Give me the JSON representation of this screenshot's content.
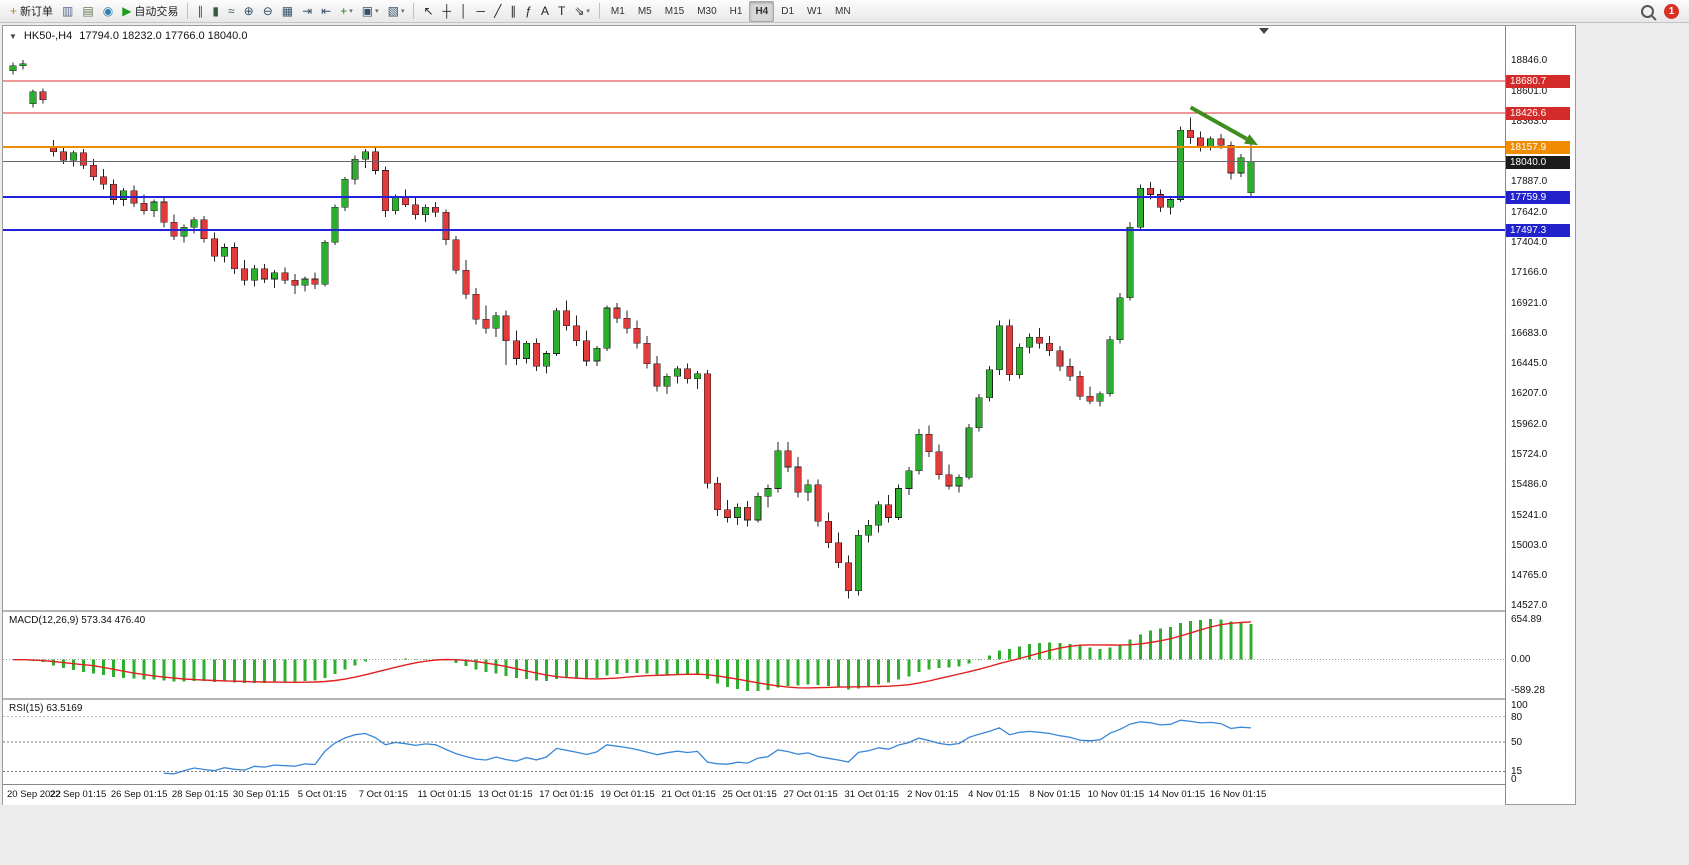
{
  "window": {
    "symbol": "HK50-,H4",
    "ohlc": "17794.0 18232.0 17766.0 18040.0"
  },
  "toolbar": {
    "notification_count": "1",
    "timeframes": [
      "M1",
      "M5",
      "M15",
      "M30",
      "H1",
      "H4",
      "D1",
      "W1",
      "MN"
    ],
    "active_timeframe": "H4",
    "groups": [
      {
        "items": [
          {
            "n": "new-order",
            "g": "+",
            "c": "#b8860b",
            "label": "新订单"
          },
          {
            "n": "charts",
            "g": "▥",
            "c": "#556688"
          },
          {
            "n": "profiles",
            "g": "▤",
            "c": "#667755"
          },
          {
            "n": "market-watch",
            "g": "◉",
            "c": "#2f7fae"
          },
          {
            "n": "autotrading",
            "g": "▶",
            "c": "#1f9e1f",
            "label": "自动交易"
          }
        ]
      },
      {
        "items": [
          {
            "n": "bar-chart",
            "g": "∥",
            "c": "#3a5a3a"
          },
          {
            "n": "candlestick-chart",
            "g": "▮",
            "c": "#3a5a3a"
          },
          {
            "n": "line-chart",
            "g": "≈",
            "c": "#3a5a3a"
          },
          {
            "n": "zoom-in",
            "g": "⊕",
            "c": "#33506a"
          },
          {
            "n": "zoom-out",
            "g": "⊖",
            "c": "#33506a"
          },
          {
            "n": "tile-windows",
            "g": "▦",
            "c": "#33506a"
          },
          {
            "n": "auto-scroll",
            "g": "⇥",
            "c": "#33506a"
          },
          {
            "n": "chart-shift",
            "g": "⇤",
            "c": "#33506a"
          },
          {
            "n": "indicators",
            "g": "+",
            "c": "#1a8a1a",
            "dd": true
          },
          {
            "n": "periods",
            "g": "▣",
            "c": "#33506a",
            "dd": true
          },
          {
            "n": "templates",
            "g": "▧",
            "c": "#33506a",
            "dd": true
          }
        ]
      },
      {
        "items": [
          {
            "n": "cursor",
            "g": "↖",
            "c": "#222222"
          },
          {
            "n": "crosshair",
            "g": "┼",
            "c": "#222222"
          },
          {
            "n": "vertical-line",
            "g": "│",
            "c": "#222222"
          },
          {
            "n": "horizontal-line",
            "g": "─",
            "c": "#222222"
          },
          {
            "n": "trendline",
            "g": "╱",
            "c": "#222222"
          },
          {
            "n": "equidistant-channel",
            "g": "∥",
            "c": "#222222"
          },
          {
            "n": "fibonacci",
            "g": "ƒ",
            "c": "#222222"
          },
          {
            "n": "text",
            "g": "A",
            "c": "#222222"
          },
          {
            "n": "text-label",
            "g": "T",
            "c": "#222222"
          },
          {
            "n": "arrows",
            "g": "⇘",
            "c": "#222222",
            "dd": true
          }
        ]
      }
    ]
  },
  "colors": {
    "bull": "#2eae2e",
    "bear": "#e23b3b",
    "wick": "#222222",
    "macd_hist": "#2eae2e",
    "macd_signal": "#e02020",
    "rsi_line": "#3a87d8",
    "arrow": "#3f8f1f"
  },
  "price_axis": {
    "ticks": [
      "18846.0",
      "18601.0",
      "18363.0",
      "18123.0",
      "17887.0",
      "17642.0",
      "17404.0",
      "17166.0",
      "16921.0",
      "16683.0",
      "16445.0",
      "16207.0",
      "15962.0",
      "15724.0",
      "15486.0",
      "15241.0",
      "15003.0",
      "14765.0",
      "14527.0"
    ]
  },
  "macd": {
    "label": "MACD(12,26,9) 573.34 476.40",
    "axis": [
      "654.89",
      "0.00",
      "-589.28"
    ]
  },
  "rsi": {
    "label": "RSI(15) 63.5169",
    "axis": [
      "100",
      "80",
      "50",
      "15",
      "0"
    ],
    "levels": [
      80,
      50,
      15
    ]
  },
  "annotations": {
    "arrow": {
      "from_bar": 117,
      "from_price": 18470,
      "to_bar": 123.7,
      "to_price": 18170
    }
  },
  "chart_data": [
    {
      "type": "candlestick",
      "title": "HK50-,H4",
      "timeframe": "H4",
      "ylim": [
        14487,
        19115
      ],
      "x_labels": [
        "20 Sep 2022",
        "22 Sep 01:15",
        "26 Sep 01:15",
        "28 Sep 01:15",
        "30 Sep 01:15",
        "5 Oct 01:15",
        "7 Oct 01:15",
        "11 Oct 01:15",
        "13 Oct 01:15",
        "17 Oct 01:15",
        "19 Oct 01:15",
        "21 Oct 01:15",
        "25 Oct 01:15",
        "27 Oct 01:15",
        "31 Oct 01:15",
        "2 Nov 01:15",
        "4 Nov 01:15",
        "8 Nov 01:15",
        "10 Nov 01:15",
        "14 Nov 01:15",
        "16 Nov 01:15"
      ],
      "levels": [
        {
          "label": "18680.7",
          "price": 18680.7,
          "color": "#e03030",
          "width": 1,
          "badge_bg": "#d42a2a"
        },
        {
          "label": "18426.6",
          "price": 18426.6,
          "color": "#e03030",
          "width": 1,
          "badge_bg": "#d42a2a"
        },
        {
          "label": "18157.9",
          "price": 18157.9,
          "color": "#f08c00",
          "width": 2,
          "badge_bg": "#f08c00"
        },
        {
          "label": "18040.0",
          "price": 18040.0,
          "color": "#666666",
          "width": 1,
          "badge_bg": "#1c1c1c"
        },
        {
          "label": "17759.9",
          "price": 17759.9,
          "color": "#2222dd",
          "width": 2,
          "badge_bg": "#2222cc"
        },
        {
          "label": "17497.3",
          "price": 17497.3,
          "color": "#2222dd",
          "width": 2,
          "badge_bg": "#2222cc"
        }
      ],
      "ohlc": [
        [
          18760,
          18825,
          18730,
          18800
        ],
        [
          18800,
          18846,
          18770,
          18815
        ],
        [
          18500,
          18610,
          18470,
          18595
        ],
        [
          18595,
          18620,
          18500,
          18530
        ],
        [
          18150,
          18210,
          18080,
          18120
        ],
        [
          18120,
          18160,
          18020,
          18050
        ],
        [
          18050,
          18130,
          18000,
          18110
        ],
        [
          18110,
          18140,
          17980,
          18010
        ],
        [
          18010,
          18060,
          17890,
          17920
        ],
        [
          17920,
          17980,
          17820,
          17860
        ],
        [
          17860,
          17900,
          17700,
          17740
        ],
        [
          17740,
          17830,
          17690,
          17810
        ],
        [
          17810,
          17850,
          17680,
          17710
        ],
        [
          17710,
          17780,
          17620,
          17650
        ],
        [
          17650,
          17740,
          17600,
          17720
        ],
        [
          17720,
          17750,
          17520,
          17560
        ],
        [
          17560,
          17620,
          17420,
          17450
        ],
        [
          17450,
          17540,
          17400,
          17520
        ],
        [
          17520,
          17600,
          17470,
          17580
        ],
        [
          17580,
          17610,
          17400,
          17430
        ],
        [
          17430,
          17480,
          17250,
          17290
        ],
        [
          17290,
          17390,
          17240,
          17360
        ],
        [
          17360,
          17400,
          17150,
          17190
        ],
        [
          17190,
          17260,
          17060,
          17100
        ],
        [
          17100,
          17220,
          17050,
          17190
        ],
        [
          17190,
          17230,
          17080,
          17110
        ],
        [
          17110,
          17180,
          17040,
          17160
        ],
        [
          17160,
          17200,
          17070,
          17100
        ],
        [
          17100,
          17150,
          16990,
          17060
        ],
        [
          17060,
          17130,
          17010,
          17110
        ],
        [
          17110,
          17160,
          17030,
          17070
        ],
        [
          17070,
          17420,
          17050,
          17400
        ],
        [
          17400,
          17700,
          17380,
          17680
        ],
        [
          17680,
          17920,
          17650,
          17900
        ],
        [
          17900,
          18090,
          17860,
          18060
        ],
        [
          18060,
          18140,
          17990,
          18120
        ],
        [
          18120,
          18150,
          17940,
          17970
        ],
        [
          17970,
          18000,
          17600,
          17650
        ],
        [
          17650,
          17780,
          17620,
          17760
        ],
        [
          17760,
          17820,
          17680,
          17700
        ],
        [
          17700,
          17760,
          17580,
          17620
        ],
        [
          17620,
          17700,
          17560,
          17680
        ],
        [
          17680,
          17720,
          17600,
          17640
        ],
        [
          17640,
          17660,
          17380,
          17420
        ],
        [
          17420,
          17450,
          17150,
          17180
        ],
        [
          17180,
          17260,
          16950,
          16990
        ],
        [
          16990,
          17040,
          16750,
          16790
        ],
        [
          16790,
          16900,
          16680,
          16720
        ],
        [
          16720,
          16850,
          16650,
          16820
        ],
        [
          16820,
          16860,
          16430,
          16620
        ],
        [
          16620,
          16700,
          16430,
          16480
        ],
        [
          16480,
          16620,
          16440,
          16600
        ],
        [
          16600,
          16640,
          16380,
          16420
        ],
        [
          16420,
          16540,
          16360,
          16520
        ],
        [
          16520,
          16880,
          16500,
          16860
        ],
        [
          16860,
          16940,
          16700,
          16740
        ],
        [
          16740,
          16820,
          16580,
          16620
        ],
        [
          16620,
          16700,
          16420,
          16460
        ],
        [
          16460,
          16580,
          16420,
          16560
        ],
        [
          16560,
          16900,
          16540,
          16880
        ],
        [
          16880,
          16920,
          16760,
          16800
        ],
        [
          16800,
          16860,
          16680,
          16720
        ],
        [
          16720,
          16780,
          16560,
          16600
        ],
        [
          16600,
          16660,
          16400,
          16440
        ],
        [
          16440,
          16500,
          16220,
          16260
        ],
        [
          16260,
          16360,
          16200,
          16340
        ],
        [
          16340,
          16420,
          16280,
          16400
        ],
        [
          16400,
          16440,
          16280,
          16320
        ],
        [
          16320,
          16380,
          16240,
          16360
        ],
        [
          16360,
          16390,
          15450,
          15490
        ],
        [
          15490,
          15540,
          15230,
          15280
        ],
        [
          15280,
          15360,
          15180,
          15220
        ],
        [
          15220,
          15330,
          15160,
          15300
        ],
        [
          15300,
          15350,
          15150,
          15200
        ],
        [
          15200,
          15420,
          15180,
          15390
        ],
        [
          15390,
          15480,
          15300,
          15450
        ],
        [
          15450,
          15820,
          15420,
          15750
        ],
        [
          15750,
          15820,
          15580,
          15620
        ],
        [
          15620,
          15700,
          15380,
          15420
        ],
        [
          15420,
          15520,
          15350,
          15480
        ],
        [
          15480,
          15520,
          15150,
          15190
        ],
        [
          15190,
          15260,
          14980,
          15020
        ],
        [
          15020,
          15100,
          14820,
          14860
        ],
        [
          14860,
          14920,
          14580,
          14640
        ],
        [
          14640,
          15120,
          14600,
          15080
        ],
        [
          15080,
          15200,
          15020,
          15160
        ],
        [
          15160,
          15350,
          15100,
          15320
        ],
        [
          15320,
          15400,
          15180,
          15220
        ],
        [
          15220,
          15480,
          15200,
          15450
        ],
        [
          15450,
          15620,
          15400,
          15590
        ],
        [
          15590,
          15920,
          15560,
          15880
        ],
        [
          15880,
          15950,
          15700,
          15740
        ],
        [
          15740,
          15800,
          15520,
          15560
        ],
        [
          15560,
          15640,
          15440,
          15470
        ],
        [
          15470,
          15560,
          15420,
          15540
        ],
        [
          15540,
          15960,
          15520,
          15930
        ],
        [
          15930,
          16200,
          15900,
          16170
        ],
        [
          16170,
          16420,
          16140,
          16390
        ],
        [
          16390,
          16780,
          16350,
          16740
        ],
        [
          16740,
          16790,
          16300,
          16350
        ],
        [
          16350,
          16600,
          16320,
          16570
        ],
        [
          16570,
          16680,
          16520,
          16650
        ],
        [
          16650,
          16720,
          16560,
          16600
        ],
        [
          16600,
          16660,
          16500,
          16540
        ],
        [
          16540,
          16580,
          16380,
          16420
        ],
        [
          16420,
          16480,
          16300,
          16340
        ],
        [
          16340,
          16380,
          16150,
          16180
        ],
        [
          16180,
          16260,
          16120,
          16140
        ],
        [
          16140,
          16220,
          16100,
          16200
        ],
        [
          16200,
          16660,
          16180,
          16630
        ],
        [
          16630,
          17000,
          16600,
          16960
        ],
        [
          16960,
          17560,
          16940,
          17520
        ],
        [
          17520,
          17860,
          17500,
          17830
        ],
        [
          17830,
          17880,
          17740,
          17780
        ],
        [
          17780,
          17820,
          17640,
          17680
        ],
        [
          17680,
          17760,
          17620,
          17740
        ],
        [
          17740,
          18320,
          17720,
          18290
        ],
        [
          18290,
          18390,
          18180,
          18230
        ],
        [
          18230,
          18280,
          18120,
          18160
        ],
        [
          18160,
          18240,
          18130,
          18220
        ],
        [
          18220,
          18260,
          18140,
          18170
        ],
        [
          18170,
          18200,
          17900,
          17950
        ],
        [
          17950,
          18100,
          17920,
          18070
        ],
        [
          17794,
          18232,
          17766,
          18040
        ]
      ]
    },
    {
      "type": "bar",
      "title": "MACD(12,26,9)",
      "params": {
        "fast": 12,
        "slow": 26,
        "signal": 9
      },
      "derivation": "histogram = EMA(12)-EMA(26) of closes; red line = SMA(9) of histogram",
      "current_values": [
        573.34,
        476.4
      ],
      "ylim": [
        -589.28,
        654.89
      ]
    },
    {
      "type": "line",
      "title": "RSI(15)",
      "period": 15,
      "current_value": 63.5169,
      "levels": [
        80,
        50,
        15
      ],
      "ylim": [
        0,
        100
      ]
    }
  ]
}
